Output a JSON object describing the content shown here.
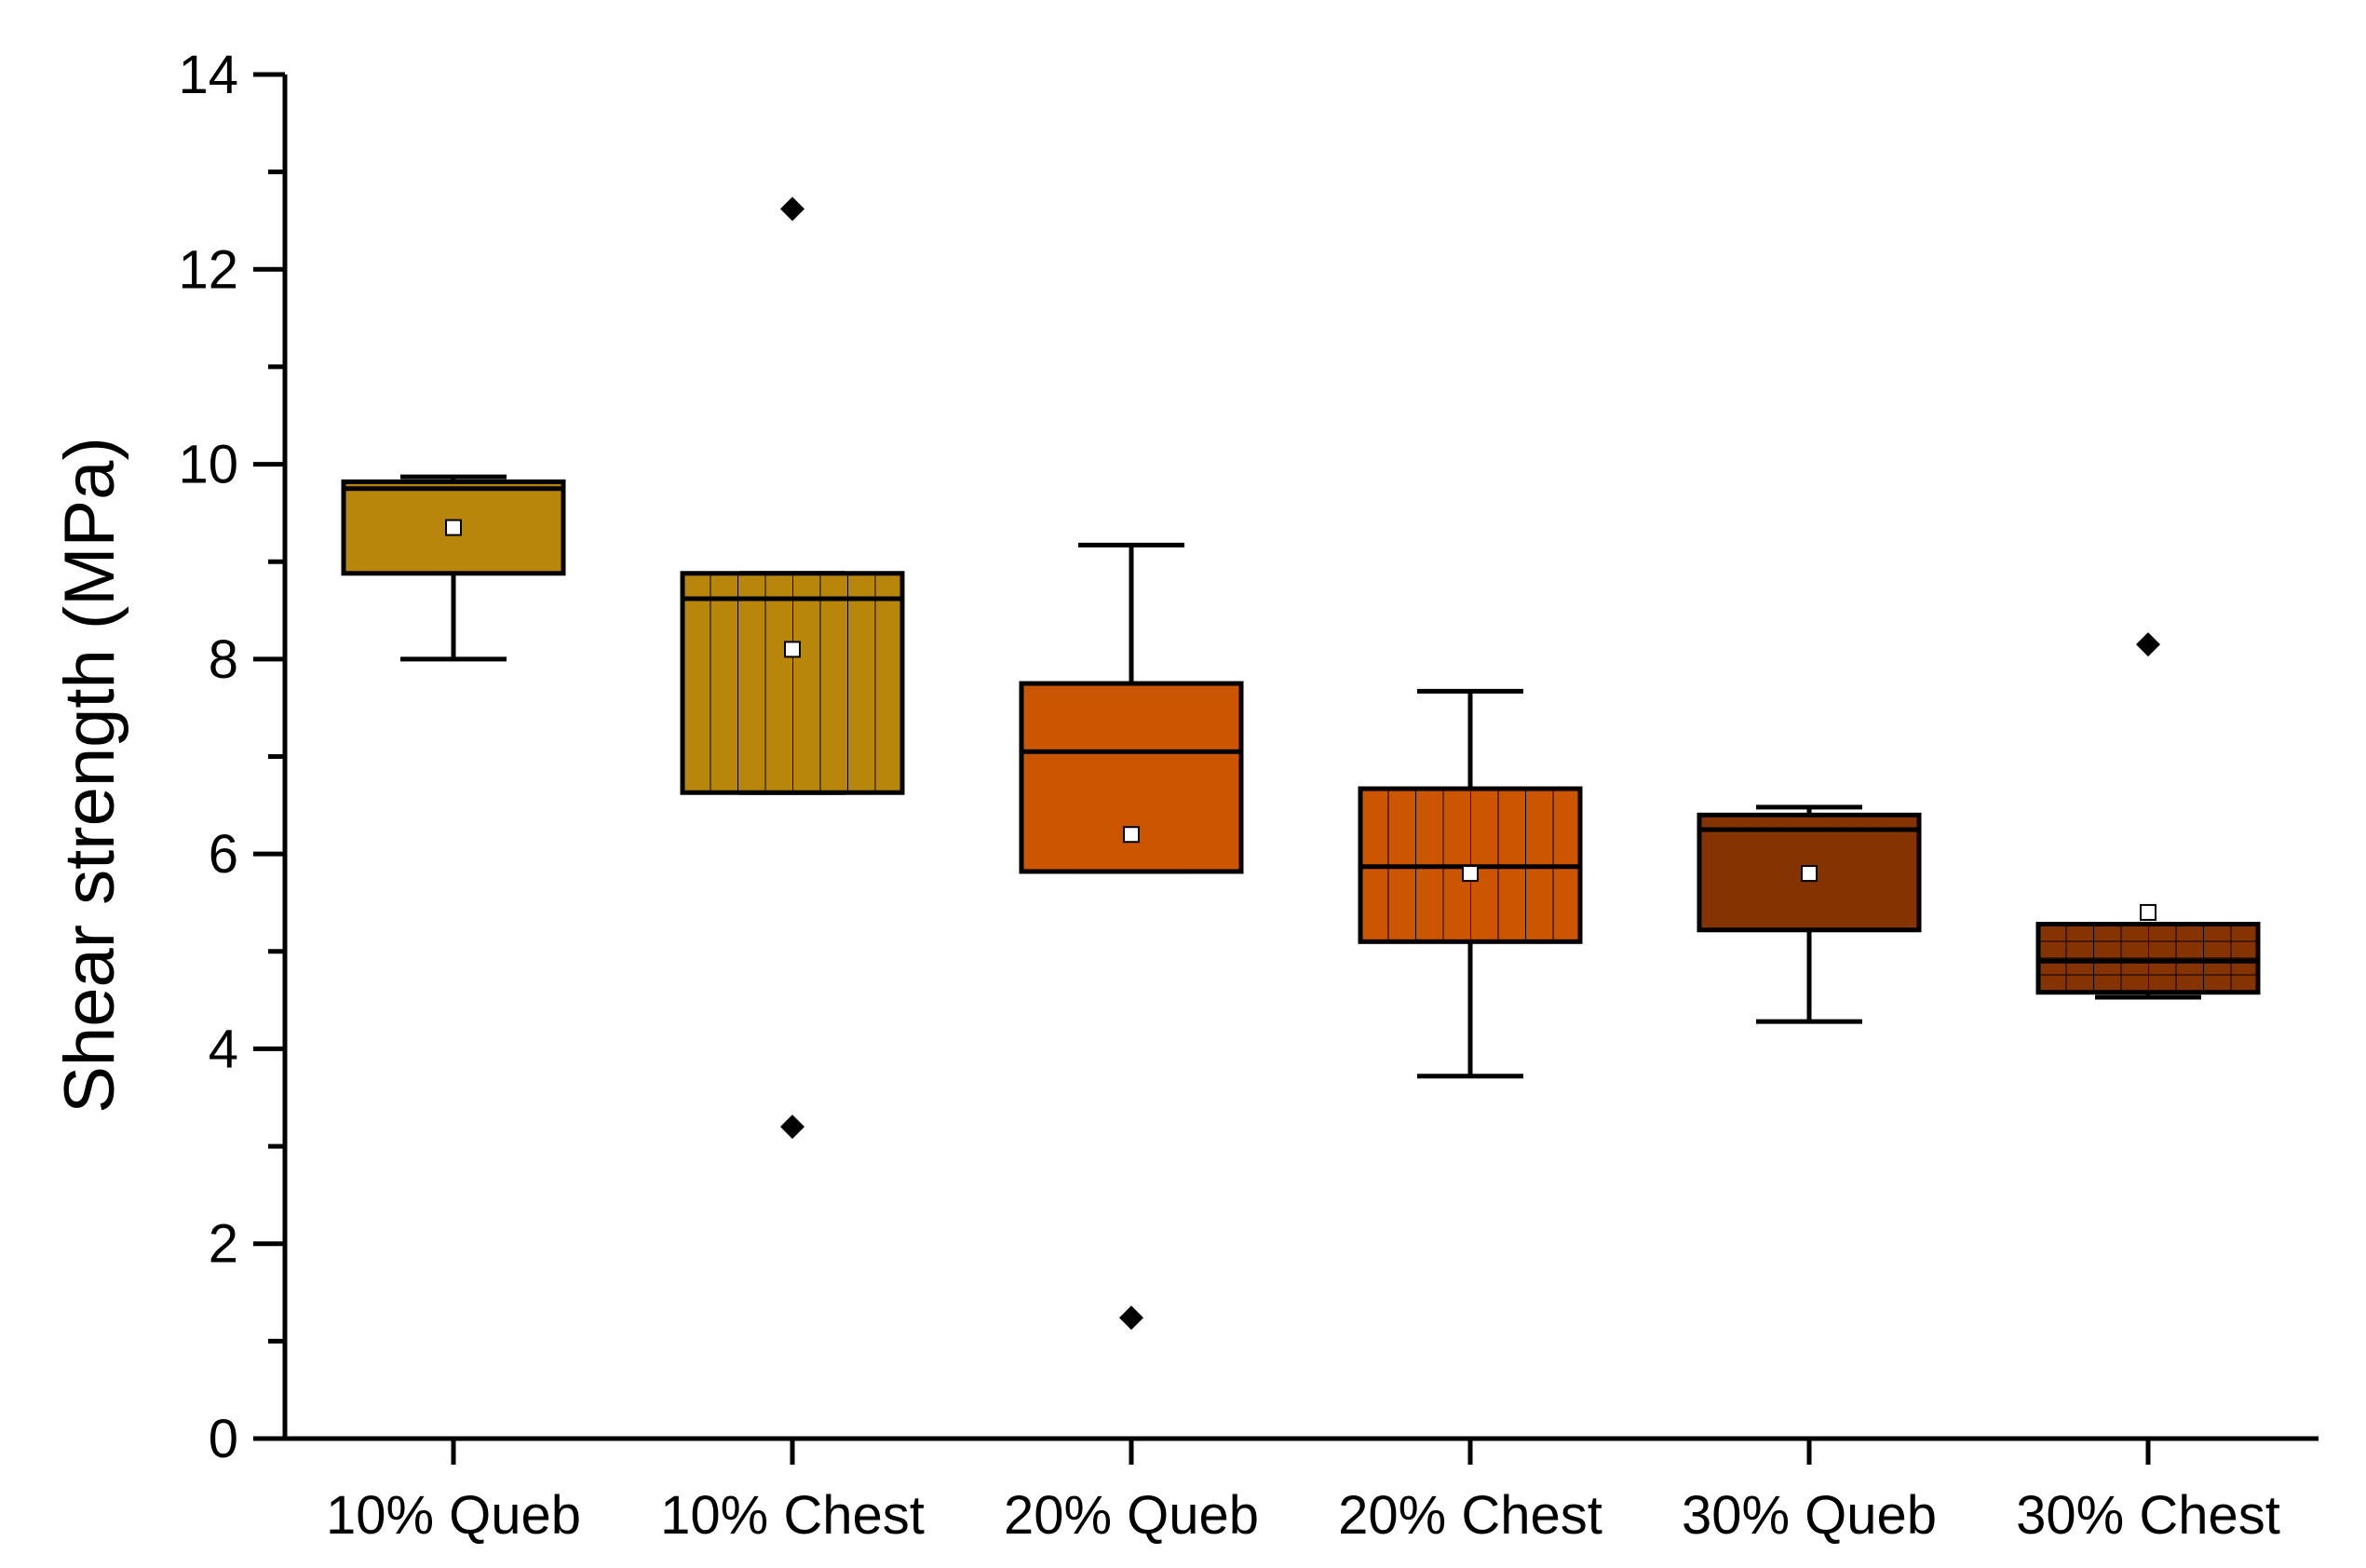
{
  "chart_data": {
    "type": "box",
    "title": "",
    "xlabel": "",
    "ylabel": "Shear strength (MPa)",
    "ylim": [
      0,
      14
    ],
    "yticks": [
      0,
      2,
      4,
      6,
      8,
      10,
      12,
      14
    ],
    "ytick_labels": [
      "0",
      "2",
      "4",
      "6",
      "8",
      "10",
      "12",
      "14"
    ],
    "grid": false,
    "legend": "none",
    "categories": [
      "10% Queb",
      "10% Chest",
      "20% Queb",
      "20% Chest",
      "30% Queb",
      "30% Chest"
    ],
    "boxes": [
      {
        "name": "10% Queb",
        "whisker_low": 8.0,
        "q1": 8.88,
        "median": 9.75,
        "q3": 9.82,
        "whisker_high": 9.87,
        "mean": 9.35,
        "outliers": [],
        "color": "#B8860B",
        "pattern": "solid"
      },
      {
        "name": "10% Chest",
        "whisker_low": 6.63,
        "q1": 6.63,
        "median": 8.62,
        "q3": 8.88,
        "whisker_high": 8.88,
        "mean": 8.1,
        "outliers": [
          12.62,
          3.2
        ],
        "color": "#B8860B",
        "pattern": "vertical-lines"
      },
      {
        "name": "20% Queb",
        "whisker_low": 5.82,
        "q1": 5.82,
        "median": 7.05,
        "q3": 7.75,
        "whisker_high": 9.17,
        "mean": 6.2,
        "outliers": [
          1.24
        ],
        "color": "#CC5500",
        "pattern": "solid"
      },
      {
        "name": "20% Chest",
        "whisker_low": 3.72,
        "q1": 5.1,
        "median": 5.87,
        "q3": 6.67,
        "whisker_high": 7.67,
        "mean": 5.8,
        "outliers": [],
        "color": "#CC5500",
        "pattern": "vertical-lines"
      },
      {
        "name": "30% Queb",
        "whisker_low": 4.28,
        "q1": 5.22,
        "median": 6.25,
        "q3": 6.4,
        "whisker_high": 6.48,
        "mean": 5.8,
        "outliers": [],
        "color": "#853300",
        "pattern": "solid"
      },
      {
        "name": "30% Chest",
        "whisker_low": 4.53,
        "q1": 4.58,
        "median": 4.9,
        "q3": 5.28,
        "whisker_high": 5.28,
        "mean": 5.4,
        "outliers": [
          8.15
        ],
        "color": "#853300",
        "pattern": "grid"
      }
    ]
  }
}
